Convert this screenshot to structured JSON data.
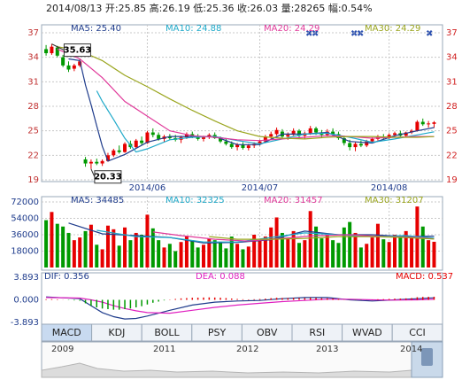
{
  "header": "2014/08/13 开:25.85 高:26.19 低:25.36 收:26.03 量:28265 幅:0.54%",
  "chart_data": [
    {
      "type": "candlestick",
      "up_color": "#e60000",
      "down_color": "#009900",
      "xlim": [
        -0.8,
        70.5
      ],
      "xticks": [
        {
          "value": 18,
          "label": "2014/06"
        },
        {
          "value": 38,
          "label": "2014/07"
        },
        {
          "value": 61,
          "label": "2014/08"
        }
      ],
      "ylim": [
        19,
        37
      ],
      "yticks": [
        19,
        22,
        25,
        28,
        31,
        34,
        37
      ],
      "grid": true,
      "open": [
        35.0,
        34.5,
        35.2,
        34.0,
        33.0,
        32.6,
        33.0,
        21.5,
        21.0,
        21.2,
        21.0,
        21.3,
        22.0,
        22.6,
        22.4,
        23.4,
        23.0,
        23.8,
        23.5,
        24.8,
        24.5,
        24.0,
        24.3,
        24.1,
        23.9,
        24.2,
        24.6,
        24.3,
        24.0,
        24.2,
        24.5,
        24.1,
        23.7,
        23.4,
        23.0,
        23.3,
        22.9,
        23.2,
        23.4,
        23.7,
        24.3,
        24.6,
        24.9,
        24.3,
        24.5,
        25.0,
        24.4,
        24.7,
        25.3,
        24.8,
        24.5,
        24.9,
        24.6,
        24.1,
        23.5,
        23.0,
        23.4,
        23.2,
        23.7,
        24.0,
        24.3,
        24.1,
        24.5,
        24.7,
        24.4,
        24.8,
        25.0,
        26.1,
        25.8,
        25.85
      ],
      "high": [
        35.5,
        35.63,
        35.4,
        34.3,
        33.5,
        33.2,
        33.8,
        21.8,
        21.5,
        21.6,
        21.5,
        22.3,
        22.8,
        23.2,
        23.6,
        23.8,
        24.0,
        24.3,
        25.0,
        25.3,
        24.8,
        24.5,
        24.6,
        24.5,
        24.4,
        24.8,
        24.9,
        24.6,
        24.4,
        24.7,
        24.8,
        24.3,
        24.0,
        23.7,
        23.5,
        23.6,
        23.4,
        23.6,
        23.9,
        24.5,
        24.9,
        25.4,
        25.2,
        24.8,
        25.3,
        25.2,
        24.9,
        25.6,
        25.5,
        25.1,
        25.2,
        25.3,
        24.9,
        24.4,
        23.9,
        23.6,
        23.8,
        23.9,
        24.2,
        24.5,
        24.6,
        24.7,
        24.9,
        25.0,
        24.9,
        25.2,
        26.3,
        26.5,
        26.2,
        26.19
      ],
      "low": [
        34.2,
        34.3,
        34.0,
        32.8,
        32.2,
        32.3,
        32.8,
        20.6,
        20.33,
        20.8,
        20.7,
        21.2,
        21.8,
        22.2,
        22.3,
        22.8,
        22.9,
        23.2,
        23.4,
        24.2,
        23.8,
        23.6,
        23.9,
        23.7,
        23.5,
        24.0,
        24.1,
        23.8,
        23.7,
        24.0,
        24.0,
        23.5,
        23.2,
        22.8,
        22.6,
        22.7,
        22.6,
        22.9,
        23.2,
        23.6,
        24.0,
        24.4,
        24.1,
        23.9,
        24.4,
        24.2,
        24.0,
        24.5,
        24.5,
        24.2,
        24.3,
        24.4,
        23.9,
        23.2,
        22.6,
        22.5,
        23.0,
        23.0,
        23.5,
        23.8,
        23.9,
        24.0,
        24.2,
        24.3,
        24.3,
        24.6,
        24.9,
        25.6,
        25.4,
        25.36
      ],
      "close": [
        34.5,
        35.3,
        34.2,
        33.0,
        32.5,
        33.0,
        33.5,
        21.0,
        21.2,
        21.0,
        21.3,
        22.0,
        22.6,
        22.4,
        23.4,
        23.0,
        23.8,
        23.5,
        24.8,
        24.5,
        24.0,
        24.3,
        24.1,
        23.9,
        24.2,
        24.6,
        24.3,
        24.0,
        24.2,
        24.5,
        24.1,
        23.7,
        23.4,
        23.0,
        23.3,
        22.9,
        23.2,
        23.4,
        23.7,
        24.3,
        24.6,
        25.1,
        24.3,
        24.5,
        25.0,
        24.4,
        24.7,
        25.3,
        24.8,
        24.5,
        24.9,
        24.6,
        24.1,
        23.5,
        23.0,
        23.4,
        23.2,
        23.7,
        24.0,
        24.3,
        24.1,
        24.5,
        24.7,
        24.4,
        24.8,
        25.0,
        26.1,
        25.8,
        25.9,
        26.03
      ],
      "series": [
        {
          "name": "MA5: 25.40",
          "color": "#1f3c8c",
          "x": [
            4,
            6,
            7,
            8,
            9,
            10,
            11,
            14,
            18,
            22,
            26,
            30,
            34,
            38,
            42,
            46,
            50,
            54,
            58,
            62,
            66,
            69
          ],
          "values": [
            33.8,
            33.6,
            30.6,
            28.2,
            25.6,
            23.1,
            21.3,
            22.1,
            23.6,
            24.3,
            24.3,
            24.3,
            23.3,
            23.3,
            24.6,
            24.6,
            24.8,
            23.7,
            23.5,
            24.4,
            25.0,
            25.4
          ]
        },
        {
          "name": "MA10: 24.88",
          "color": "#1ea9c9",
          "x": [
            9,
            10,
            12,
            14,
            16,
            18,
            22,
            26,
            30,
            34,
            38,
            42,
            46,
            50,
            54,
            58,
            62,
            66,
            69
          ],
          "values": [
            29.9,
            28.6,
            26.4,
            24.1,
            22.4,
            22.8,
            23.9,
            24.2,
            24.3,
            23.8,
            23.4,
            24.0,
            24.6,
            24.7,
            24.2,
            23.6,
            24.0,
            24.5,
            24.88
          ]
        },
        {
          "name": "MA20: 24.29",
          "color": "#e0399a",
          "x": [
            2,
            6,
            10,
            14,
            18,
            22,
            26,
            30,
            34,
            38,
            42,
            46,
            50,
            54,
            58,
            62,
            66,
            69
          ],
          "values": [
            35.0,
            33.8,
            31.5,
            28.6,
            26.8,
            25.0,
            24.4,
            24.2,
            23.9,
            23.8,
            24.0,
            24.2,
            24.4,
            24.3,
            24.1,
            24.2,
            24.3,
            24.29
          ]
        },
        {
          "name": "MA30: 24.29",
          "color": "#9aa51e",
          "x": [
            2,
            6,
            10,
            14,
            18,
            22,
            26,
            30,
            34,
            38,
            42,
            46,
            50,
            54,
            58,
            62,
            66,
            69
          ],
          "values": [
            35.3,
            34.8,
            33.6,
            31.8,
            30.4,
            28.9,
            27.5,
            26.2,
            25.0,
            24.3,
            24.1,
            24.0,
            24.2,
            24.3,
            24.3,
            24.2,
            24.2,
            24.29
          ]
        }
      ],
      "annotations": [
        {
          "text": "35.63",
          "x": 1,
          "y": 35.63
        },
        {
          "text": "20.33",
          "x": 8,
          "y": 20.33
        }
      ]
    },
    {
      "type": "bar",
      "ylim": [
        0,
        72000
      ],
      "yticks": [
        18000,
        36000,
        54000,
        72000
      ],
      "grid": true,
      "values": [
        52000,
        61000,
        48000,
        45000,
        38000,
        30000,
        33000,
        40000,
        47000,
        25000,
        20000,
        46000,
        42000,
        24000,
        44000,
        30000,
        38000,
        36000,
        58000,
        43000,
        30000,
        22000,
        26000,
        18000,
        28000,
        35000,
        30000,
        22000,
        25000,
        32000,
        30000,
        27000,
        21000,
        34000,
        26000,
        20000,
        23000,
        36000,
        30000,
        34000,
        44000,
        55000,
        38000,
        32000,
        40000,
        27000,
        30000,
        62000,
        45000,
        32000,
        36000,
        30000,
        27000,
        44000,
        50000,
        38000,
        22000,
        26000,
        33000,
        48000,
        31000,
        28000,
        36000,
        33000,
        40000,
        34000,
        67000,
        45000,
        30000,
        28265
      ],
      "series": [
        {
          "name": "MA5: 34485",
          "color": "#1f3c8c",
          "x": [
            4,
            10,
            16,
            22,
            28,
            34,
            40,
            46,
            52,
            58,
            64,
            69
          ],
          "values": [
            48800,
            37000,
            35000,
            33000,
            27000,
            27600,
            30600,
            40000,
            36000,
            36000,
            34000,
            34485
          ]
        },
        {
          "name": "MA10: 32325",
          "color": "#1ea9c9",
          "x": [
            9,
            16,
            22,
            28,
            34,
            40,
            46,
            52,
            58,
            64,
            69
          ],
          "values": [
            40900,
            34000,
            33000,
            28000,
            28000,
            33000,
            38000,
            36000,
            34000,
            35000,
            32325
          ]
        },
        {
          "name": "MA20: 31457",
          "color": "#e0399a",
          "x": [
            19,
            24,
            30,
            36,
            42,
            48,
            54,
            60,
            66,
            69
          ],
          "values": [
            39000,
            35000,
            31000,
            29000,
            32000,
            35000,
            36000,
            34000,
            33000,
            31457
          ]
        },
        {
          "name": "MA30: 31207",
          "color": "#9aa51e",
          "x": [
            29,
            34,
            40,
            46,
            52,
            58,
            64,
            69
          ],
          "values": [
            34000,
            31000,
            31000,
            32000,
            34000,
            34000,
            33000,
            31207
          ]
        }
      ]
    },
    {
      "type": "macd",
      "ylim": [
        -3.893,
        3.893
      ],
      "yticks": [
        -3.893,
        {
          "value": 0,
          "label": "0.000"
        },
        3.893
      ],
      "series": [
        {
          "name": "DIF: 0.356",
          "type": "line",
          "color": "#1f3c8c",
          "x": [
            0,
            6,
            8,
            10,
            12,
            14,
            16,
            18,
            22,
            26,
            30,
            34,
            38,
            42,
            46,
            50,
            54,
            58,
            62,
            66,
            69
          ],
          "values": [
            0.5,
            0.2,
            -1.0,
            -2.2,
            -2.9,
            -3.3,
            -3.2,
            -2.8,
            -1.8,
            -0.9,
            -0.4,
            -0.2,
            -0.1,
            0.2,
            0.4,
            0.4,
            0.0,
            -0.2,
            0.0,
            0.2,
            0.356
          ]
        },
        {
          "name": "DEA: 0.088",
          "type": "line",
          "color": "#e020c0",
          "x": [
            0,
            6,
            8,
            10,
            12,
            14,
            16,
            18,
            22,
            26,
            30,
            34,
            38,
            42,
            46,
            50,
            54,
            58,
            62,
            66,
            69
          ],
          "values": [
            0.4,
            0.3,
            0.0,
            -0.4,
            -1.0,
            -1.5,
            -1.9,
            -2.2,
            -2.3,
            -1.8,
            -1.3,
            -0.9,
            -0.6,
            -0.3,
            -0.1,
            0.1,
            0.1,
            0.0,
            -0.05,
            0.0,
            0.088
          ]
        },
        {
          "name": "MACD: 0.537",
          "type": "bar",
          "color": "#e60000",
          "negative_color": "#009900",
          "values": [
            0.1,
            0.12,
            0.08,
            0.02,
            -0.05,
            -0.1,
            -0.15,
            -0.6,
            -1.0,
            -1.3,
            -1.5,
            -1.6,
            -1.7,
            -1.7,
            -1.6,
            -1.5,
            -1.3,
            -1.1,
            -0.8,
            -0.5,
            -0.3,
            -0.1,
            0.05,
            0.15,
            0.25,
            0.3,
            0.35,
            0.38,
            0.4,
            0.42,
            0.4,
            0.36,
            0.3,
            0.22,
            0.15,
            0.1,
            0.08,
            0.1,
            0.14,
            0.2,
            0.28,
            0.35,
            0.32,
            0.3,
            0.33,
            0.3,
            0.3,
            0.36,
            0.32,
            0.28,
            0.26,
            0.22,
            0.15,
            0.05,
            -0.05,
            -0.08,
            -0.06,
            -0.02,
            0.04,
            0.1,
            0.12,
            0.16,
            0.2,
            0.22,
            0.25,
            0.3,
            0.45,
            0.5,
            0.52,
            0.537
          ]
        }
      ]
    }
  ],
  "tabs": [
    "MACD",
    "KDJ",
    "BOLL",
    "PSY",
    "OBV",
    "RSI",
    "WVAD",
    "CCI"
  ],
  "navigator": {
    "years": [
      "2009",
      "2011",
      "2012",
      "2013",
      "2014"
    ]
  }
}
